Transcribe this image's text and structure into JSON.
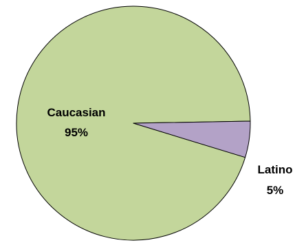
{
  "chart_data": {
    "type": "pie",
    "title": "",
    "categories": [
      "Caucasian",
      "Latino"
    ],
    "values": [
      95,
      5
    ],
    "value_labels": [
      "95%",
      "5%"
    ],
    "colors": [
      "#c3d69b",
      "#b3a2c7"
    ],
    "edge_color": "#000000",
    "legend": "none"
  }
}
